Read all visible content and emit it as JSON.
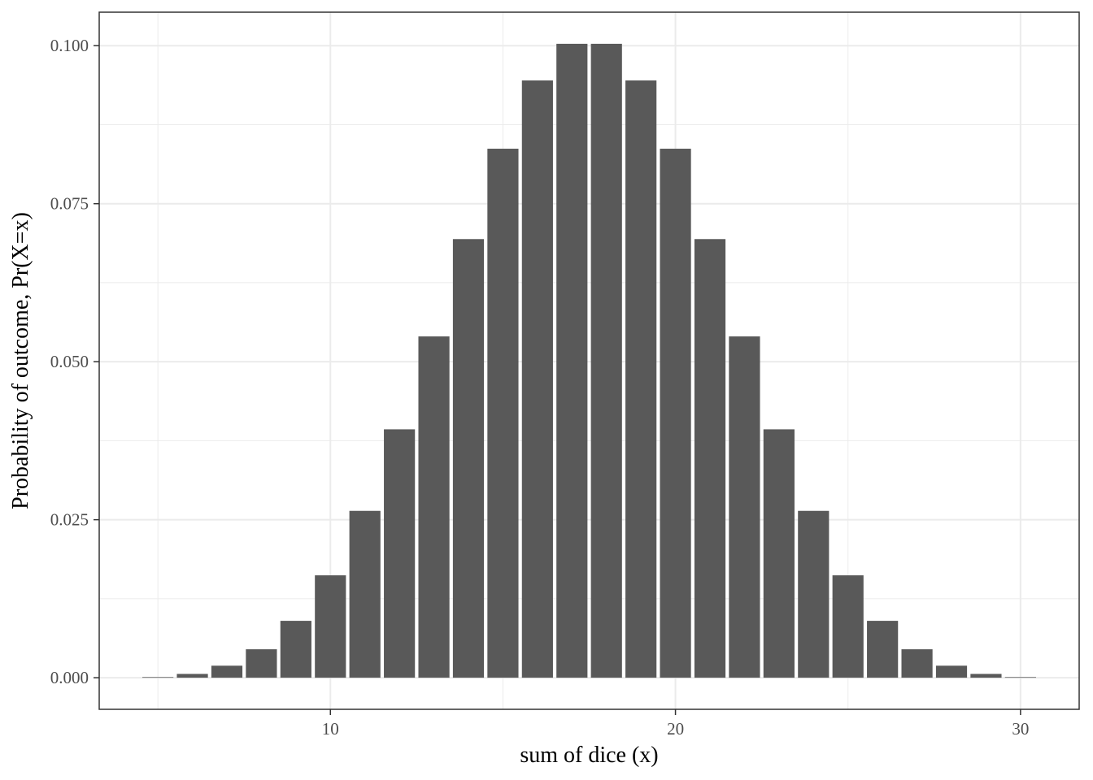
{
  "chart_data": {
    "type": "bar",
    "title": "",
    "xlabel": "sum of dice (x)",
    "ylabel": "Probability of outcome, Pr(X=x)",
    "x": [
      5,
      6,
      7,
      8,
      9,
      10,
      11,
      12,
      13,
      14,
      15,
      16,
      17,
      18,
      19,
      20,
      21,
      22,
      23,
      24,
      25,
      26,
      27,
      28,
      29,
      30
    ],
    "values": [
      0.0001,
      0.0006,
      0.0019,
      0.0045,
      0.009,
      0.0162,
      0.0264,
      0.0393,
      0.054,
      0.0694,
      0.0837,
      0.0945,
      0.1003,
      0.1003,
      0.0945,
      0.0837,
      0.0694,
      0.054,
      0.0393,
      0.0264,
      0.0162,
      0.009,
      0.0045,
      0.0019,
      0.0006,
      0.0001
    ],
    "xlim": [
      3.3,
      31.7
    ],
    "ylim": [
      -0.005,
      0.1053
    ],
    "x_ticks": [
      10,
      20,
      30
    ],
    "x_tick_labels": [
      "10",
      "20",
      "30"
    ],
    "x_minor_ticks": [
      5,
      15,
      25
    ],
    "y_ticks": [
      0.0,
      0.025,
      0.05,
      0.075,
      0.1
    ],
    "y_tick_labels": [
      "0.000",
      "0.025",
      "0.050",
      "0.075",
      "0.100"
    ],
    "y_minor_ticks": [
      0.0125,
      0.0375,
      0.0625,
      0.0875
    ],
    "bar_color": "#595959",
    "bar_outline_color": "#ffffff",
    "grid": true,
    "grid_color": "#ebebeb",
    "panel_border_color": "#333333",
    "legend": "none"
  }
}
